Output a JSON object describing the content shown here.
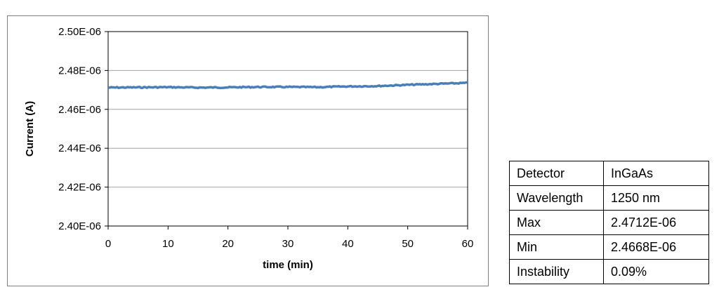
{
  "chart_data": {
    "type": "line",
    "title": "",
    "xlabel": "time (min)",
    "ylabel": "Current (A)",
    "xlim": [
      0,
      60
    ],
    "ylim": [
      2.4e-06,
      2.5e-06
    ],
    "x_ticks": [
      "0",
      "10",
      "20",
      "30",
      "40",
      "50",
      "60"
    ],
    "y_ticks": [
      "2.40E-06",
      "2.42E-06",
      "2.44E-06",
      "2.46E-06",
      "2.48E-06",
      "2.50E-06"
    ],
    "grid": true,
    "legend": "none",
    "series": [
      {
        "color": "#4a7ebb",
        "x": [
          0,
          5,
          10,
          15,
          20,
          25,
          30,
          35,
          40,
          45,
          50,
          55,
          60
        ],
        "y": [
          2.4712e-06,
          2.4713e-06,
          2.4714e-06,
          2.4712e-06,
          2.4713e-06,
          2.4715e-06,
          2.4715e-06,
          2.4714e-06,
          2.4718e-06,
          2.472e-06,
          2.4726e-06,
          2.4731e-06,
          2.4736e-06
        ]
      }
    ]
  },
  "table": {
    "rows": [
      {
        "label": "Detector",
        "value": "InGaAs"
      },
      {
        "label": "Wavelength",
        "value": "1250 nm"
      },
      {
        "label": "Max",
        "value": "2.4712E-06"
      },
      {
        "label": "Min",
        "value": "2.4668E-06"
      },
      {
        "label": "Instability",
        "value": "0.09%"
      }
    ]
  }
}
